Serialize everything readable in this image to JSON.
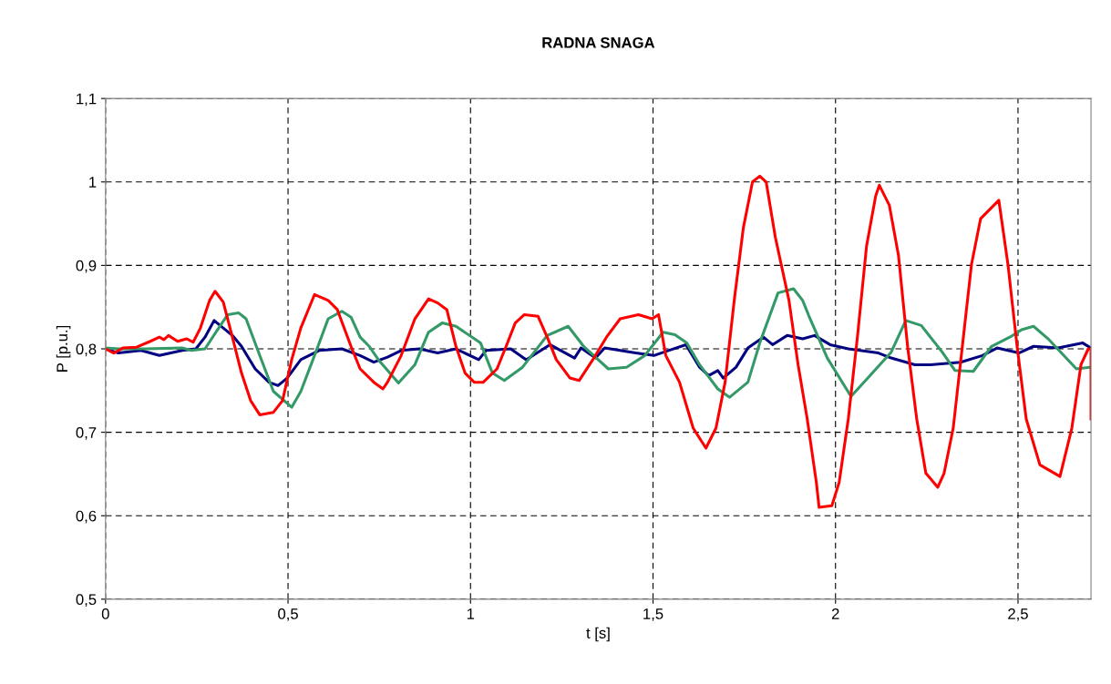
{
  "chart_data": {
    "type": "line",
    "title": "RADNA SNAGA",
    "xlabel": "t [s]",
    "ylabel": "P [p.u.]",
    "xlim": [
      0,
      2.7
    ],
    "ylim": [
      0.5,
      1.1
    ],
    "xticks": [
      0,
      {
        "value": 0.5,
        "label": "0,5"
      },
      1,
      {
        "value": 1.5,
        "label": "1,5"
      },
      2,
      {
        "value": 2.5,
        "label": "2,5"
      }
    ],
    "yticks": [
      {
        "value": 0.5,
        "label": "0,5"
      },
      {
        "value": 0.6,
        "label": "0,6"
      },
      {
        "value": 0.7,
        "label": "0,7"
      },
      {
        "value": 0.8,
        "label": "0,8"
      },
      {
        "value": 0.9,
        "label": "0,9"
      },
      1,
      {
        "value": 1.1,
        "label": "1,1"
      }
    ],
    "grid": true,
    "line_style": "solid",
    "series": [
      {
        "color": "#000080",
        "x": [
          0,
          0.035,
          0.0975,
          0.1475,
          0.21,
          0.2475,
          0.2725,
          0.2975,
          0.3225,
          0.3475,
          0.3725,
          0.41,
          0.4475,
          0.4725,
          0.4975,
          0.535,
          0.585,
          0.6475,
          0.6975,
          0.735,
          0.7725,
          0.81,
          0.86,
          0.91,
          0.96,
          1.0225,
          1.0425,
          1.11,
          1.1525,
          1.2175,
          1.285,
          1.3025,
          1.3425,
          1.3675,
          1.4525,
          1.5025,
          1.5425,
          1.59,
          1.6275,
          1.6525,
          1.6775,
          1.6925,
          1.7275,
          1.76,
          1.8025,
          1.8275,
          1.8675,
          1.91,
          1.9425,
          1.985,
          2.035,
          2.1175,
          2.1525,
          2.2175,
          2.26,
          2.3425,
          2.4025,
          2.4425,
          2.5025,
          2.5425,
          2.61,
          2.6775,
          2.7
        ],
        "values": [
          0.8,
          0.795,
          0.798,
          0.792,
          0.798,
          0.8,
          0.814,
          0.834,
          0.825,
          0.816,
          0.803,
          0.776,
          0.76,
          0.756,
          0.765,
          0.787,
          0.798,
          0.8,
          0.792,
          0.784,
          0.79,
          0.798,
          0.8,
          0.795,
          0.8,
          0.787,
          0.798,
          0.8,
          0.787,
          0.805,
          0.789,
          0.801,
          0.789,
          0.801,
          0.795,
          0.792,
          0.798,
          0.805,
          0.778,
          0.768,
          0.774,
          0.765,
          0.778,
          0.801,
          0.814,
          0.805,
          0.816,
          0.812,
          0.816,
          0.805,
          0.8,
          0.795,
          0.789,
          0.781,
          0.781,
          0.784,
          0.792,
          0.801,
          0.795,
          0.803,
          0.801,
          0.807,
          0.801
        ]
      },
      {
        "color": "#339966",
        "x": [
          0,
          0.035,
          0.11,
          0.21,
          0.235,
          0.2725,
          0.31,
          0.335,
          0.365,
          0.385,
          0.4225,
          0.46,
          0.51,
          0.535,
          0.5725,
          0.61,
          0.6475,
          0.6725,
          0.6975,
          0.7225,
          0.7475,
          0.8025,
          0.8475,
          0.885,
          0.9225,
          0.96,
          1.0275,
          1.06,
          1.0925,
          1.1425,
          1.21,
          1.2675,
          1.31,
          1.3775,
          1.4275,
          1.4775,
          1.5275,
          1.56,
          1.5925,
          1.6275,
          1.6775,
          1.71,
          1.76,
          1.7925,
          1.8425,
          1.885,
          1.91,
          1.9275,
          1.9775,
          2.0425,
          2.0925,
          2.1525,
          2.1925,
          2.235,
          2.2925,
          2.3275,
          2.3775,
          2.4275,
          2.4775,
          2.51,
          2.5425,
          2.585,
          2.66,
          2.7
        ],
        "values": [
          0.801,
          0.8,
          0.8,
          0.801,
          0.798,
          0.8,
          0.825,
          0.841,
          0.843,
          0.836,
          0.792,
          0.749,
          0.73,
          0.749,
          0.792,
          0.836,
          0.845,
          0.838,
          0.814,
          0.803,
          0.787,
          0.759,
          0.781,
          0.82,
          0.831,
          0.827,
          0.807,
          0.771,
          0.762,
          0.778,
          0.816,
          0.827,
          0.803,
          0.776,
          0.778,
          0.792,
          0.82,
          0.817,
          0.807,
          0.781,
          0.752,
          0.742,
          0.76,
          0.807,
          0.867,
          0.872,
          0.858,
          0.839,
          0.789,
          0.743,
          0.767,
          0.796,
          0.834,
          0.828,
          0.796,
          0.774,
          0.773,
          0.803,
          0.814,
          0.823,
          0.827,
          0.811,
          0.776,
          0.778
        ]
      },
      {
        "color": "#ff0000",
        "x": [
          0,
          0.0225,
          0.0475,
          0.085,
          0.1225,
          0.1475,
          0.16,
          0.1725,
          0.1975,
          0.2225,
          0.24,
          0.26,
          0.285,
          0.3,
          0.3225,
          0.3475,
          0.3725,
          0.3975,
          0.4225,
          0.46,
          0.485,
          0.51,
          0.535,
          0.5725,
          0.61,
          0.635,
          0.6725,
          0.6975,
          0.735,
          0.76,
          0.7725,
          0.81,
          0.8475,
          0.885,
          0.91,
          0.935,
          0.96,
          0.985,
          1.01,
          1.035,
          1.0725,
          1.0975,
          1.1225,
          1.1475,
          1.185,
          1.21,
          1.235,
          1.2725,
          1.2975,
          1.335,
          1.3725,
          1.41,
          1.46,
          1.4975,
          1.515,
          1.535,
          1.5725,
          1.61,
          1.645,
          1.6725,
          1.6975,
          1.7225,
          1.7475,
          1.7725,
          1.7925,
          1.81,
          1.835,
          1.8725,
          1.8975,
          1.9225,
          1.9475,
          1.955,
          1.99,
          2.01,
          2.035,
          2.06,
          2.085,
          2.11,
          2.12,
          2.1475,
          2.1725,
          2.1975,
          2.2225,
          2.2475,
          2.28,
          2.2975,
          2.3225,
          2.3475,
          2.3725,
          2.3975,
          2.4475,
          2.4725,
          2.4975,
          2.5225,
          2.56,
          2.615,
          2.6475,
          2.6725,
          2.6925,
          2.7,
          2.7
        ],
        "values": [
          0.8,
          0.795,
          0.801,
          0.802,
          0.809,
          0.814,
          0.811,
          0.816,
          0.809,
          0.812,
          0.808,
          0.825,
          0.858,
          0.869,
          0.856,
          0.814,
          0.771,
          0.738,
          0.721,
          0.724,
          0.738,
          0.787,
          0.825,
          0.865,
          0.858,
          0.847,
          0.803,
          0.776,
          0.76,
          0.752,
          0.76,
          0.792,
          0.836,
          0.86,
          0.855,
          0.847,
          0.803,
          0.771,
          0.76,
          0.76,
          0.776,
          0.803,
          0.831,
          0.841,
          0.839,
          0.814,
          0.787,
          0.765,
          0.762,
          0.787,
          0.814,
          0.836,
          0.841,
          0.836,
          0.841,
          0.792,
          0.76,
          0.705,
          0.681,
          0.705,
          0.76,
          0.858,
          0.945,
          1.0,
          1.007,
          1.0,
          0.934,
          0.858,
          0.781,
          0.716,
          0.64,
          0.61,
          0.612,
          0.64,
          0.716,
          0.814,
          0.923,
          0.983,
          0.996,
          0.972,
          0.912,
          0.803,
          0.716,
          0.651,
          0.634,
          0.651,
          0.705,
          0.803,
          0.901,
          0.956,
          0.978,
          0.901,
          0.803,
          0.716,
          0.661,
          0.647,
          0.705,
          0.781,
          0.8,
          0.8,
          0.716
        ]
      }
    ]
  }
}
